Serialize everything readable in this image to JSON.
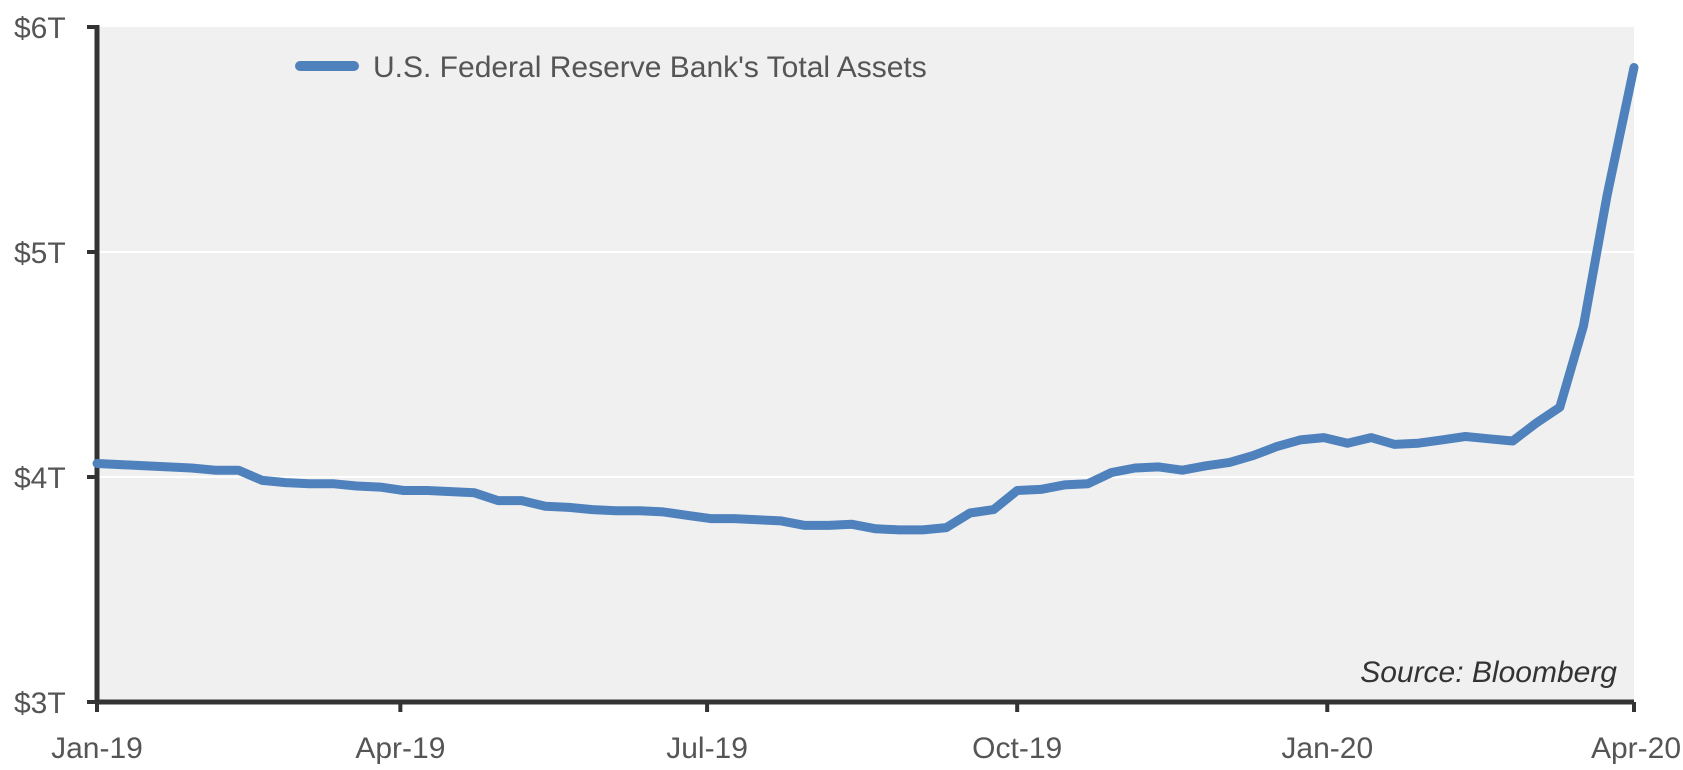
{
  "chart_data": {
    "type": "line",
    "xlabel": "",
    "ylabel": "",
    "ylim": [
      3,
      6
    ],
    "x_range": [
      "2019-01-01",
      "2020-04-01"
    ],
    "y_ticks": [
      {
        "value": 6,
        "label": "$6T"
      },
      {
        "value": 5,
        "label": "$5T"
      },
      {
        "value": 4,
        "label": "$4T"
      },
      {
        "value": 3,
        "label": "$3T"
      }
    ],
    "x_ticks": [
      {
        "date": "2019-01-01",
        "label": "Jan-19"
      },
      {
        "date": "2019-04-01",
        "label": "Apr-19"
      },
      {
        "date": "2019-07-01",
        "label": "Jul-19"
      },
      {
        "date": "2019-10-01",
        "label": "Oct-19"
      },
      {
        "date": "2020-01-01",
        "label": "Jan-20"
      },
      {
        "date": "2020-04-01",
        "label": "Apr-20"
      }
    ],
    "grid": true,
    "legend_position": "top-left",
    "annotation": "Source: Bloomberg",
    "series": [
      {
        "name": "U.S. Federal Reserve Bank's Total Assets",
        "color": "#4f81bd",
        "x": [
          "2019-01-01",
          "2019-01-08",
          "2019-01-15",
          "2019-01-22",
          "2019-01-29",
          "2019-02-05",
          "2019-02-12",
          "2019-02-19",
          "2019-02-26",
          "2019-03-05",
          "2019-03-12",
          "2019-03-19",
          "2019-03-26",
          "2019-04-02",
          "2019-04-09",
          "2019-04-16",
          "2019-04-23",
          "2019-04-30",
          "2019-05-07",
          "2019-05-14",
          "2019-05-21",
          "2019-05-28",
          "2019-06-04",
          "2019-06-11",
          "2019-06-18",
          "2019-06-25",
          "2019-07-02",
          "2019-07-09",
          "2019-07-16",
          "2019-07-23",
          "2019-07-30",
          "2019-08-06",
          "2019-08-13",
          "2019-08-20",
          "2019-08-27",
          "2019-09-03",
          "2019-09-10",
          "2019-09-17",
          "2019-09-24",
          "2019-10-01",
          "2019-10-08",
          "2019-10-15",
          "2019-10-22",
          "2019-10-29",
          "2019-11-05",
          "2019-11-12",
          "2019-11-19",
          "2019-11-26",
          "2019-12-03",
          "2019-12-10",
          "2019-12-17",
          "2019-12-24",
          "2019-12-31",
          "2020-01-07",
          "2020-01-14",
          "2020-01-21",
          "2020-01-28",
          "2020-02-04",
          "2020-02-11",
          "2020-02-18",
          "2020-02-25",
          "2020-03-03",
          "2020-03-10",
          "2020-03-17",
          "2020-03-24",
          "2020-04-01"
        ],
        "values": [
          4.06,
          4.055,
          4.05,
          4.045,
          4.04,
          4.03,
          4.03,
          3.985,
          3.975,
          3.97,
          3.97,
          3.96,
          3.955,
          3.94,
          3.94,
          3.935,
          3.93,
          3.895,
          3.895,
          3.87,
          3.865,
          3.855,
          3.85,
          3.85,
          3.845,
          3.83,
          3.815,
          3.815,
          3.81,
          3.805,
          3.785,
          3.785,
          3.79,
          3.77,
          3.765,
          3.765,
          3.775,
          3.84,
          3.855,
          3.94,
          3.945,
          3.965,
          3.97,
          4.02,
          4.04,
          4.045,
          4.03,
          4.05,
          4.065,
          4.095,
          4.135,
          4.165,
          4.175,
          4.15,
          4.175,
          4.145,
          4.15,
          4.165,
          4.18,
          4.17,
          4.16,
          4.24,
          4.31,
          4.67,
          5.25,
          5.82
        ]
      }
    ]
  }
}
